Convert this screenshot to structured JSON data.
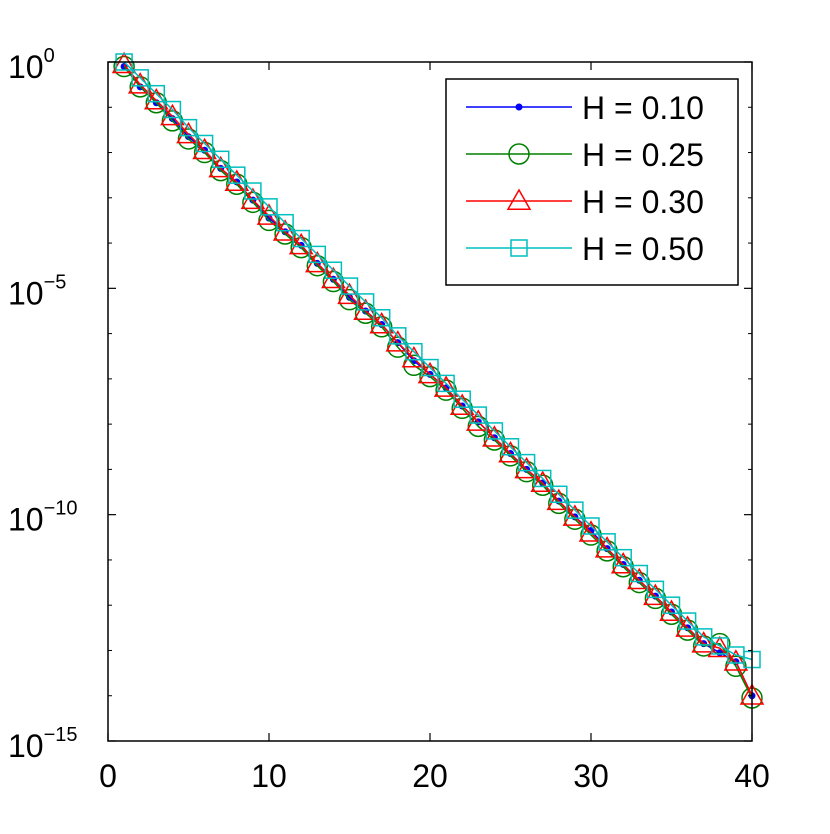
{
  "chart_data": {
    "type": "line",
    "yscale": "log",
    "xlim": [
      0,
      40
    ],
    "ylim_exponents": [
      -15,
      0
    ],
    "x_ticks": [
      0,
      10,
      20,
      30,
      40
    ],
    "x_tick_labels": [
      "0",
      "10",
      "20",
      "30",
      "40"
    ],
    "y_ticks": [
      {
        "exp": 0,
        "base": "10",
        "power": "0"
      },
      {
        "exp": -5,
        "base": "10",
        "power": "−5"
      },
      {
        "exp": -10,
        "base": "10",
        "power": "−10"
      },
      {
        "exp": -15,
        "base": "10",
        "power": "−15"
      }
    ],
    "legend_position": "top-right",
    "grid": false,
    "x": [
      1,
      2,
      3,
      4,
      5,
      6,
      7,
      8,
      9,
      10,
      11,
      12,
      13,
      14,
      15,
      16,
      17,
      18,
      19,
      20,
      21,
      22,
      23,
      24,
      25,
      26,
      27,
      28,
      29,
      30,
      31,
      32,
      33,
      34,
      35,
      36,
      37,
      38,
      39,
      40
    ],
    "series": [
      {
        "name": "H = 0.10",
        "color": "#0000ff",
        "marker": "dot",
        "log10_values": [
          -0.1,
          -0.55,
          -0.9,
          -1.25,
          -1.65,
          -1.95,
          -2.35,
          -2.65,
          -3.05,
          -3.45,
          -3.75,
          -4.05,
          -4.45,
          -4.8,
          -5.2,
          -5.5,
          -5.8,
          -6.2,
          -6.6,
          -6.9,
          -7.2,
          -7.6,
          -7.95,
          -8.3,
          -8.65,
          -9.0,
          -9.3,
          -9.7,
          -10.05,
          -10.35,
          -10.75,
          -11.1,
          -11.45,
          -11.8,
          -12.15,
          -12.5,
          -12.85,
          -13.05,
          -13.25,
          -14.0
        ]
      },
      {
        "name": "H = 0.25",
        "color": "#008000",
        "marker": "circle",
        "log10_values": [
          -0.1,
          -0.55,
          -0.9,
          -1.3,
          -1.7,
          -2.0,
          -2.4,
          -2.7,
          -3.1,
          -3.5,
          -3.8,
          -4.1,
          -4.5,
          -4.85,
          -5.25,
          -5.55,
          -5.85,
          -6.3,
          -6.7,
          -6.95,
          -7.25,
          -7.65,
          -8.05,
          -8.35,
          -8.7,
          -9.05,
          -9.35,
          -9.75,
          -10.1,
          -10.45,
          -10.8,
          -11.15,
          -11.5,
          -11.85,
          -12.2,
          -12.55,
          -12.9,
          -12.85,
          -13.35,
          -14.05
        ]
      },
      {
        "name": "H = 0.30",
        "color": "#ff0000",
        "marker": "triangle",
        "log10_values": [
          -0.05,
          -0.5,
          -0.85,
          -1.2,
          -1.6,
          -1.95,
          -2.35,
          -2.65,
          -3.05,
          -3.4,
          -3.75,
          -4.05,
          -4.45,
          -4.8,
          -5.15,
          -5.5,
          -5.8,
          -6.2,
          -6.55,
          -6.9,
          -7.2,
          -7.6,
          -7.95,
          -8.3,
          -8.65,
          -9.0,
          -9.3,
          -9.7,
          -10.05,
          -10.4,
          -10.75,
          -11.1,
          -11.45,
          -11.8,
          -12.15,
          -12.5,
          -12.85,
          -12.95,
          -13.25,
          -14.0
        ]
      },
      {
        "name": "H = 0.50",
        "color": "#00bfbf",
        "marker": "square",
        "log10_values": [
          0.0,
          -0.35,
          -0.7,
          -1.05,
          -1.45,
          -1.8,
          -2.15,
          -2.5,
          -2.85,
          -3.2,
          -3.55,
          -3.9,
          -4.25,
          -4.6,
          -4.95,
          -5.3,
          -5.65,
          -6.05,
          -6.4,
          -6.75,
          -7.1,
          -7.45,
          -7.8,
          -8.15,
          -8.5,
          -8.85,
          -9.2,
          -9.55,
          -9.9,
          -10.25,
          -10.6,
          -10.95,
          -11.3,
          -11.65,
          -12.0,
          -12.35,
          -12.7,
          -12.9,
          -13.1,
          -13.2
        ]
      }
    ]
  }
}
